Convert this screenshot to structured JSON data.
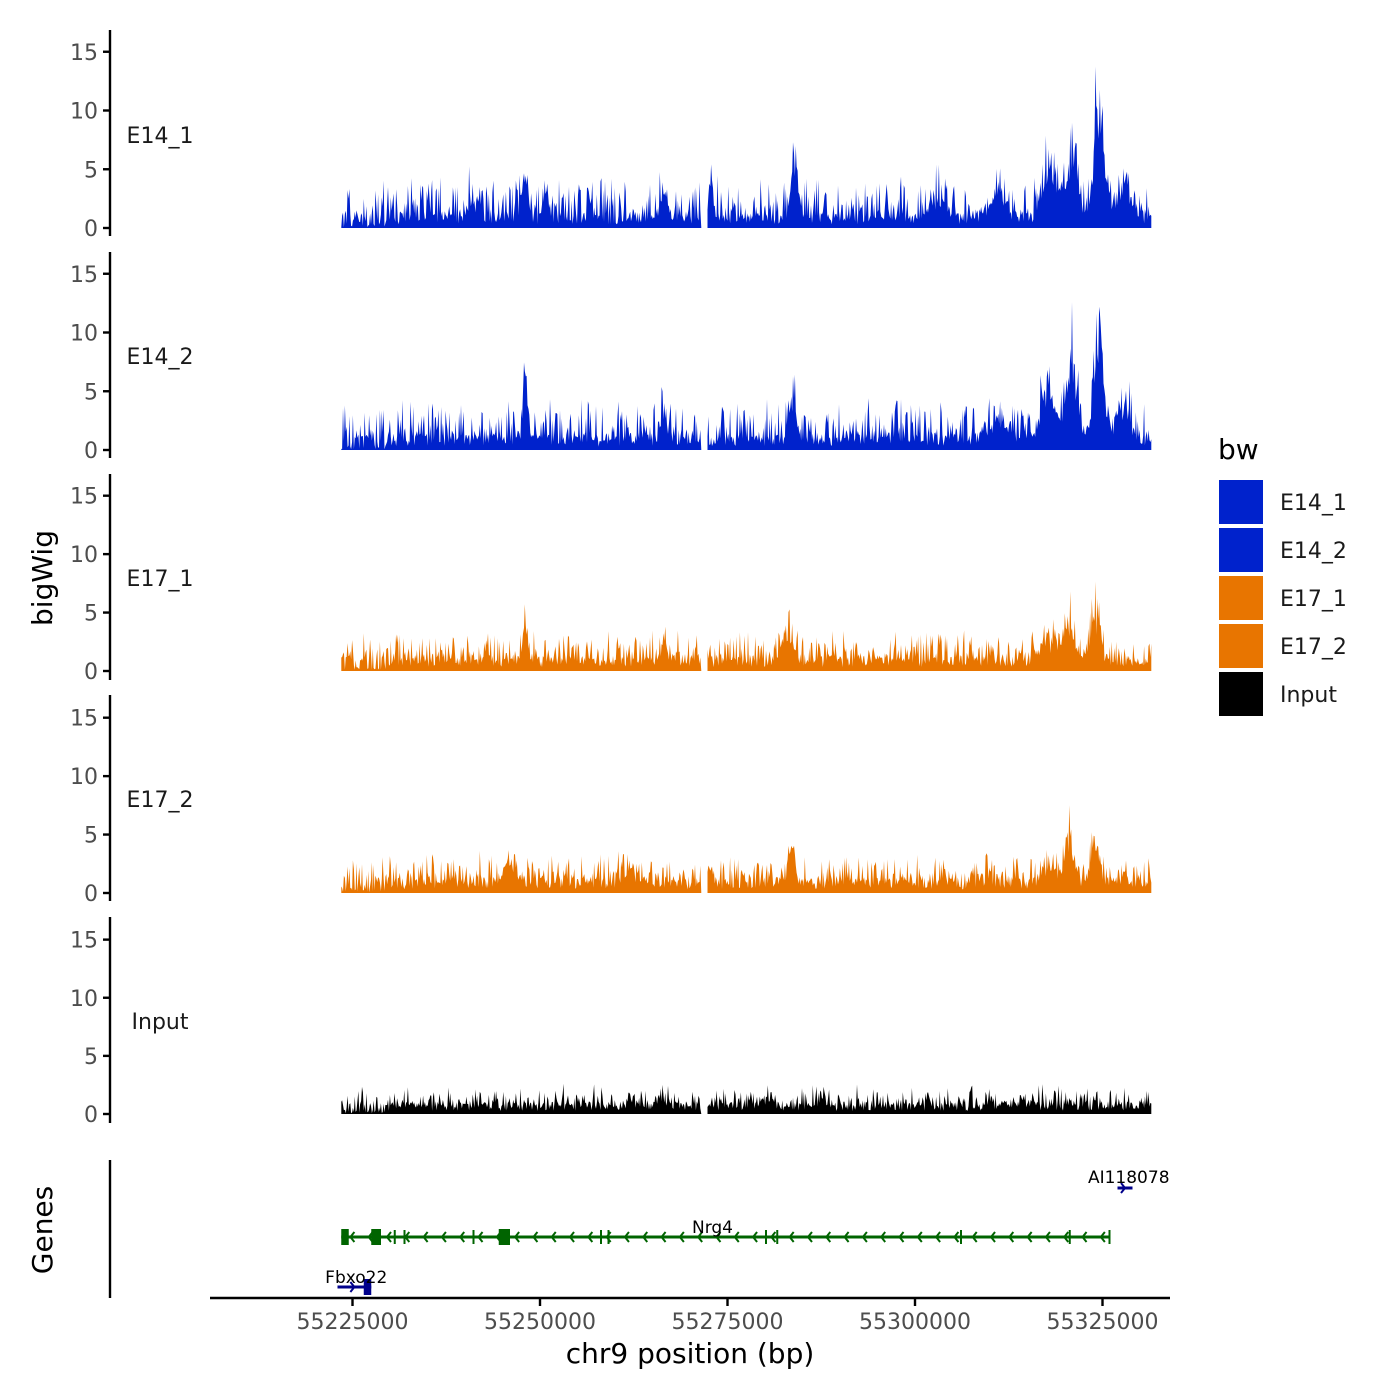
{
  "chart_data": {
    "type": "area",
    "title": "",
    "xlabel": "chr9 position (bp)",
    "ylabel": "bigWig",
    "genes_label": "Genes",
    "xlim": [
      55206000,
      55334000
    ],
    "x_ticks": [
      55225000,
      55250000,
      55275000,
      55300000,
      55325000
    ],
    "x_tick_labels": [
      "55225000",
      "55250000",
      "55275000",
      "55300000",
      "55325000"
    ],
    "ylim": [
      0,
      16
    ],
    "y_ticks": [
      0,
      5,
      10,
      15
    ],
    "y_tick_labels": [
      "0",
      "5",
      "10",
      "15"
    ],
    "data_range": [
      55223500,
      55331500
    ],
    "gap": [
      55271500,
      55272300
    ],
    "legend": {
      "title": "bw",
      "position": "right",
      "entries": [
        {
          "label": "E14_1",
          "color": "#0022CC"
        },
        {
          "label": "E14_2",
          "color": "#0022CC"
        },
        {
          "label": "E17_1",
          "color": "#E87500"
        },
        {
          "label": "E17_2",
          "color": "#E87500"
        },
        {
          "label": "Input",
          "color": "#000000"
        }
      ]
    },
    "series": [
      {
        "name": "E14_1",
        "color": "#0022CC",
        "base": 1.0,
        "noise": 2.0,
        "seed": 11,
        "peaks": [
          {
            "x": 55248000,
            "h": 3.8,
            "w": 600
          },
          {
            "x": 55241000,
            "h": 1.5,
            "w": 900
          },
          {
            "x": 55266500,
            "h": 2.5,
            "w": 700
          },
          {
            "x": 55272800,
            "h": 2.8,
            "w": 500
          },
          {
            "x": 55284000,
            "h": 4.5,
            "w": 700
          },
          {
            "x": 55303000,
            "h": 1.8,
            "w": 1200
          },
          {
            "x": 55311000,
            "h": 2.0,
            "w": 1500
          },
          {
            "x": 55318000,
            "h": 4.5,
            "w": 1400
          },
          {
            "x": 55321000,
            "h": 6.5,
            "w": 900
          },
          {
            "x": 55324500,
            "h": 10.0,
            "w": 900
          },
          {
            "x": 55328000,
            "h": 3.0,
            "w": 1200
          }
        ]
      },
      {
        "name": "E14_2",
        "color": "#0022CC",
        "base": 1.0,
        "noise": 2.0,
        "seed": 23,
        "peaks": [
          {
            "x": 55248000,
            "h": 6.5,
            "w": 450
          },
          {
            "x": 55266500,
            "h": 2.2,
            "w": 700
          },
          {
            "x": 55283700,
            "h": 4.0,
            "w": 700
          },
          {
            "x": 55311000,
            "h": 2.0,
            "w": 1500
          },
          {
            "x": 55318000,
            "h": 4.5,
            "w": 1400
          },
          {
            "x": 55321000,
            "h": 7.5,
            "w": 900
          },
          {
            "x": 55324500,
            "h": 10.5,
            "w": 900
          },
          {
            "x": 55328000,
            "h": 3.0,
            "w": 1200
          }
        ]
      },
      {
        "name": "E17_1",
        "color": "#E87500",
        "base": 1.0,
        "noise": 1.5,
        "seed": 37,
        "peaks": [
          {
            "x": 55248000,
            "h": 3.2,
            "w": 500
          },
          {
            "x": 55266500,
            "h": 1.5,
            "w": 800
          },
          {
            "x": 55283000,
            "h": 2.0,
            "w": 1200
          },
          {
            "x": 55318000,
            "h": 2.0,
            "w": 1500
          },
          {
            "x": 55320500,
            "h": 3.5,
            "w": 900
          },
          {
            "x": 55324000,
            "h": 3.5,
            "w": 900
          }
        ]
      },
      {
        "name": "E17_2",
        "color": "#E87500",
        "base": 1.0,
        "noise": 1.5,
        "seed": 53,
        "peaks": [
          {
            "x": 55246000,
            "h": 1.5,
            "w": 1500
          },
          {
            "x": 55262000,
            "h": 0.8,
            "w": 1500
          },
          {
            "x": 55272800,
            "h": 1.5,
            "w": 500
          },
          {
            "x": 55283500,
            "h": 3.2,
            "w": 600
          },
          {
            "x": 55318000,
            "h": 2.0,
            "w": 1200
          },
          {
            "x": 55320500,
            "h": 4.0,
            "w": 900
          },
          {
            "x": 55324000,
            "h": 3.5,
            "w": 900
          }
        ]
      },
      {
        "name": "Input",
        "color": "#000000",
        "base": 0.8,
        "noise": 1.0,
        "seed": 71,
        "peaks": [
          {
            "x": 55266000,
            "h": 0.8,
            "w": 600
          },
          {
            "x": 55280500,
            "h": 0.8,
            "w": 600
          }
        ]
      }
    ],
    "genes": {
      "Nrg4": {
        "label": "Nrg4",
        "color": "#006400",
        "strand": "-",
        "start": 55223500,
        "end": 55326000,
        "label_x": 55273000,
        "exons": [
          [
            55223500,
            55224500
          ],
          [
            55227500,
            55228800
          ],
          [
            55244500,
            55246000
          ],
          [
            55230500,
            55230700
          ],
          [
            55231800,
            55232000
          ],
          [
            55241000,
            55241200
          ],
          [
            55258000,
            55258200
          ],
          [
            55259000,
            55259200
          ],
          [
            55280000,
            55280200
          ],
          [
            55281500,
            55281700
          ],
          [
            55306000,
            55306200
          ],
          [
            55320500,
            55320700
          ],
          [
            55325800,
            55326000
          ]
        ]
      },
      "Fbxo22": {
        "label": "Fbxo22",
        "color": "#00008B",
        "strand": "+",
        "start": 55223000,
        "end": 55227500,
        "label_x": 55225500,
        "exons": [
          [
            55226500,
            55227500
          ]
        ]
      },
      "AI118078": {
        "label": "AI118078",
        "color": "#00008B",
        "strand": "+",
        "start": 55327000,
        "end": 55329000,
        "label_x": 55328500,
        "exons": []
      }
    }
  }
}
